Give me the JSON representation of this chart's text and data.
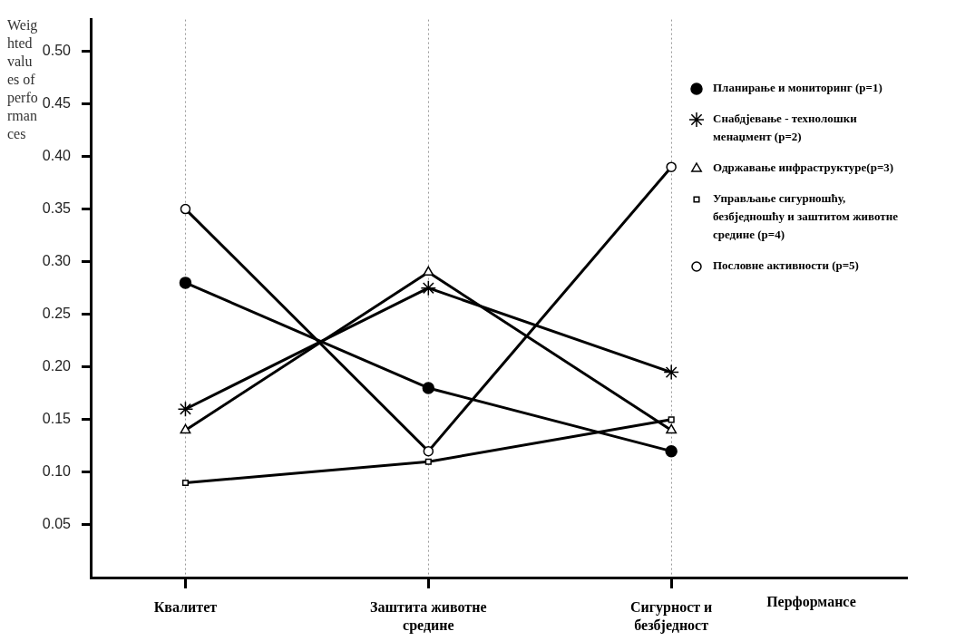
{
  "chart_data": {
    "type": "line",
    "ylabel": "Weighted values of performances",
    "xlabel": "Перформансе",
    "categories": [
      "Квалитет",
      "Заштита животне средине",
      "Сигурност и безбједност"
    ],
    "series": [
      {
        "name": "Планирање и мониторинг (p=1)",
        "color": "#000000",
        "marker": "circle",
        "values": [
          0.28,
          0.18,
          0.12
        ]
      },
      {
        "name": "Снабдјевање - технолошки менаџмент (p=2)",
        "color": "#000000",
        "marker": "cross",
        "values": [
          0.16,
          0.275,
          0.195
        ]
      },
      {
        "name": "Одржавање инфраструктуре(p=3)",
        "color": "#000000",
        "marker": "triangle",
        "values": [
          0.14,
          0.29,
          0.14
        ]
      },
      {
        "name": "Управљање сигурношћу, безбједношћу и заштитом животне средине (p=4)",
        "color": "#000000",
        "marker": "square",
        "values": [
          0.09,
          0.11,
          0.15
        ]
      },
      {
        "name": "Пословне активности (p=5)",
        "color": "#000000",
        "marker": "circle-open",
        "values": [
          0.35,
          0.12,
          0.39
        ]
      }
    ],
    "ylim": [
      0,
      0.53
    ],
    "yticks": [
      {
        "value": 0.05,
        "label": "0.05"
      },
      {
        "value": 0.1,
        "label": "0.10"
      },
      {
        "value": 0.15,
        "label": "0.15"
      },
      {
        "value": 0.2,
        "label": "0.20"
      },
      {
        "value": 0.25,
        "label": "0.25"
      },
      {
        "value": 0.3,
        "label": "0.30"
      },
      {
        "value": 0.35,
        "label": "0.35"
      },
      {
        "value": 0.4,
        "label": "0.40"
      },
      {
        "value": 0.45,
        "label": "0.45"
      },
      {
        "value": 0.5,
        "label": "0.50"
      }
    ],
    "grid": "x",
    "legend": "top right",
    "line_style": "solid"
  }
}
